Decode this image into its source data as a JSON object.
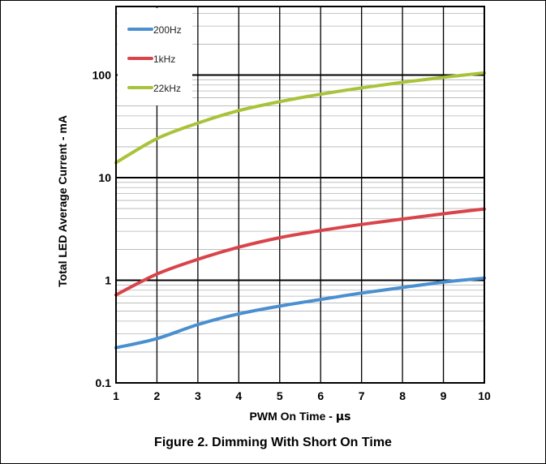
{
  "caption": "Figure 2. Dimming With Short On Time",
  "chart_data": {
    "type": "line",
    "title": "",
    "xlabel_prefix": "PWM On Time - ",
    "xlabel_unit": "μs",
    "ylabel": "Total LED Average Current - mA",
    "xlim": [
      1,
      10
    ],
    "ylim": [
      0.1,
      400
    ],
    "yscale": "log",
    "grid": true,
    "legend_position": "top-left",
    "x_ticks": [
      "1",
      "2",
      "3",
      "4",
      "5",
      "6",
      "7",
      "8",
      "9",
      "10"
    ],
    "y_ticks": [
      {
        "value": 0.1,
        "label": "0.1"
      },
      {
        "value": 1,
        "label": "1"
      },
      {
        "value": 10,
        "label": "10"
      },
      {
        "value": 100,
        "label": "100"
      }
    ],
    "x": [
      1,
      2,
      3,
      4,
      5,
      6,
      7,
      8,
      9,
      10
    ],
    "series": [
      {
        "name": "200Hz",
        "color": "#4a8fd0",
        "values": [
          0.22,
          0.27,
          0.37,
          0.47,
          0.56,
          0.65,
          0.75,
          0.85,
          0.96,
          1.05
        ]
      },
      {
        "name": "1kHz",
        "color": "#d9444a",
        "values": [
          0.72,
          1.15,
          1.6,
          2.1,
          2.6,
          3.05,
          3.5,
          3.95,
          4.45,
          4.95
        ]
      },
      {
        "name": "22kHz",
        "color": "#a8c33a",
        "values": [
          14,
          24,
          34,
          45,
          55,
          65,
          75,
          85,
          95,
          105
        ]
      }
    ]
  }
}
